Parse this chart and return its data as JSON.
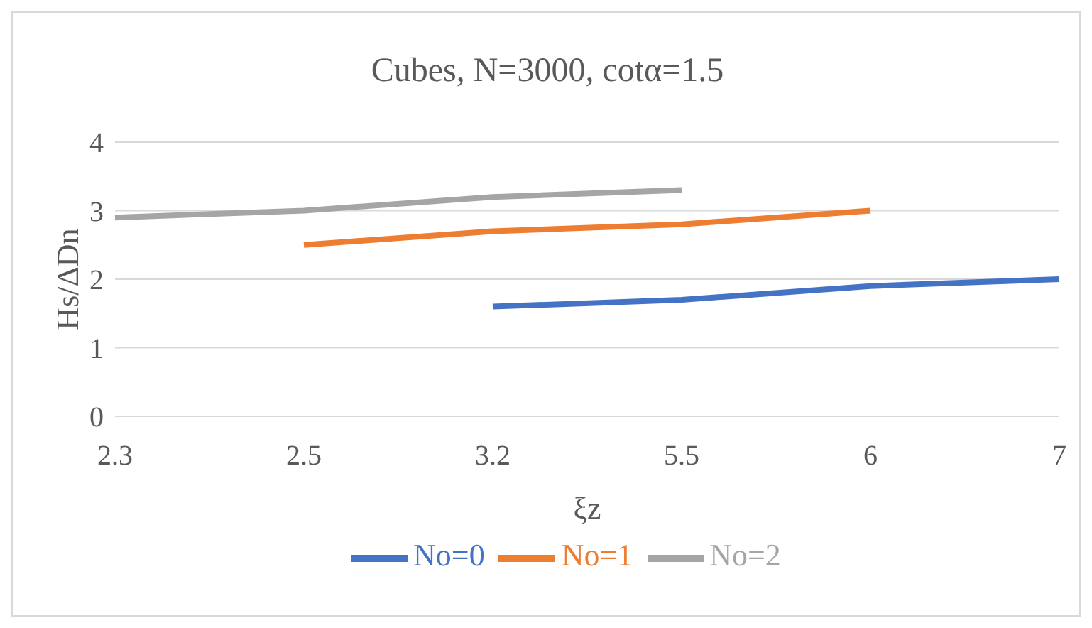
{
  "chart_data": {
    "type": "line",
    "title": "Cubes, N=3000, cotα=1.5",
    "xlabel": "ξz",
    "ylabel": "Hs/ΔDn",
    "categories": [
      "2.3",
      "2.5",
      "3.2",
      "5.5",
      "6",
      "7"
    ],
    "series": [
      {
        "name": "No=0",
        "color": "#4472c4",
        "values": [
          null,
          null,
          1.6,
          1.7,
          1.9,
          2.0
        ]
      },
      {
        "name": "No=1",
        "color": "#ed7d31",
        "values": [
          null,
          2.5,
          2.7,
          2.8,
          3.0,
          null
        ]
      },
      {
        "name": "No=2",
        "color": "#a5a5a5",
        "values": [
          2.9,
          3.0,
          3.2,
          3.3,
          null,
          null
        ]
      }
    ],
    "ylim": [
      0,
      4
    ],
    "yticks": [
      0,
      1,
      2,
      3,
      4
    ],
    "grid": "y",
    "legend": "bottom",
    "marker": "none",
    "line_style": "solid"
  }
}
